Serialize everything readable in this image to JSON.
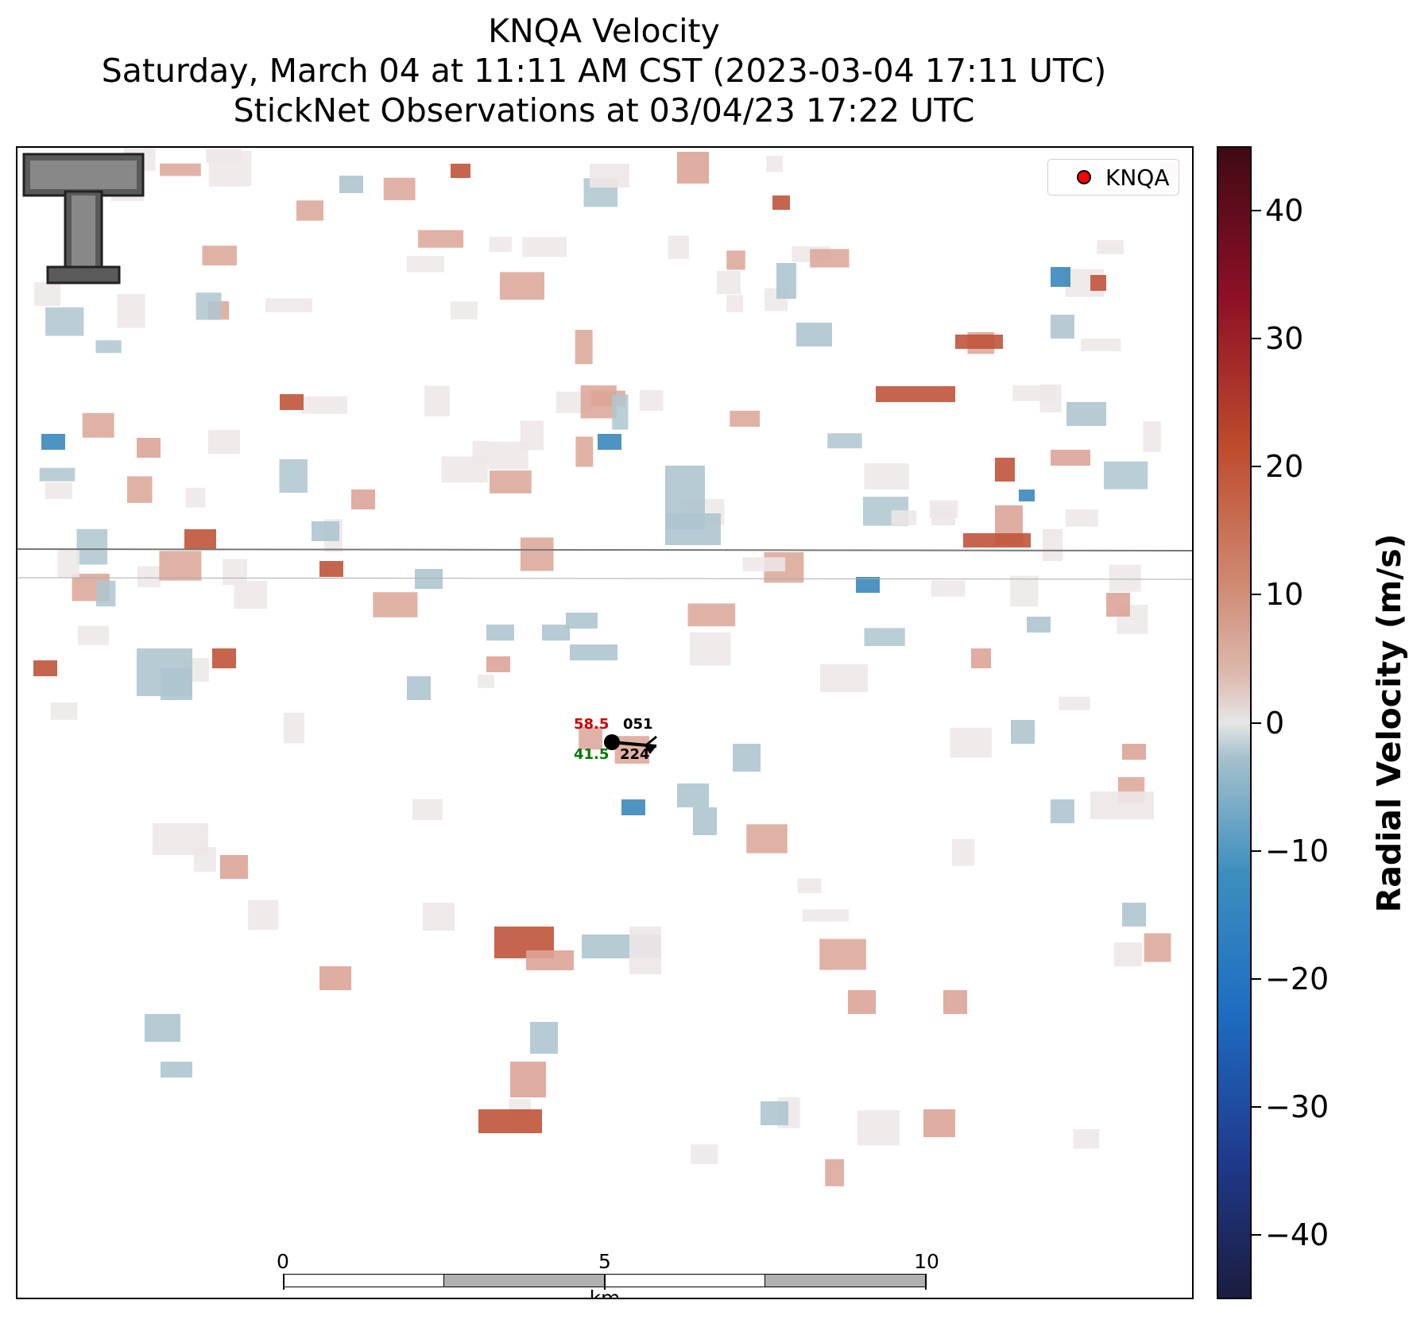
{
  "title": {
    "line1": "KNQA Velocity",
    "line2": "Saturday, March 04 at 11:11 AM CST (2023-03-04 17:11 UTC)",
    "line3": "StickNet Observations at 03/04/23 17:22 UTC"
  },
  "legend": {
    "label": "KNQA",
    "marker_color": "#ff0000"
  },
  "logo": {
    "name": "texas-tech-double-t-logo",
    "text": "TT"
  },
  "observation": {
    "temperature": "58.5",
    "dewpoint": "41.5",
    "upper_right": "051",
    "lower_right": "224",
    "temperature_color": "#cc0000",
    "dewpoint_color": "#007700"
  },
  "scalebar": {
    "labels": [
      "0",
      "5",
      "10"
    ],
    "unit": "km"
  },
  "colorbar": {
    "title": "Radial Velocity (m/s)",
    "range": [
      -45,
      45
    ],
    "ticks": [
      "40",
      "30",
      "20",
      "10",
      "0",
      "−10",
      "−20",
      "−30",
      "−40"
    ],
    "tick_values": [
      40,
      30,
      20,
      10,
      0,
      -10,
      -20,
      -30,
      -40
    ]
  },
  "colors": {
    "strong_positive": "#c0543a",
    "weak_positive": "#dba497",
    "near_zero": "#ede7e7",
    "weak_negative": "#aec5cf",
    "strong_negative": "#3a88bd"
  }
}
